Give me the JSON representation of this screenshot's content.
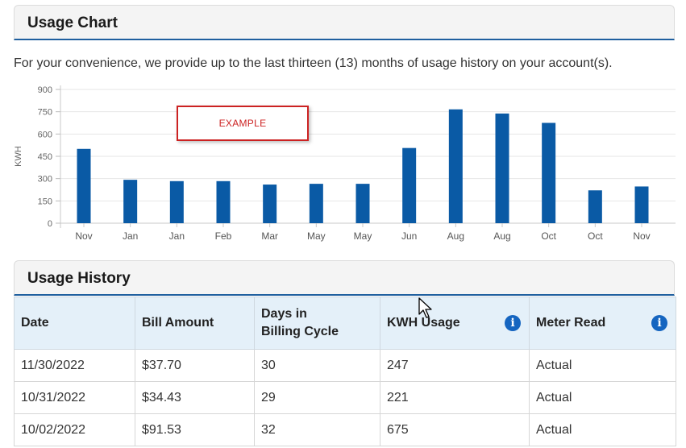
{
  "usage_chart": {
    "title": "Usage Chart",
    "intro": "For your convenience, we provide up to the last thirteen (13) months of usage history on your account(s).",
    "example_label": "EXAMPLE"
  },
  "chart_data": {
    "type": "bar",
    "categories": [
      "Nov",
      "Jan",
      "Jan",
      "Feb",
      "Mar",
      "May",
      "May",
      "Jun",
      "Aug",
      "Aug",
      "Oct",
      "Oct",
      "Nov"
    ],
    "values": [
      500,
      292,
      283,
      283,
      260,
      265,
      265,
      506,
      766,
      738,
      675,
      221,
      247
    ],
    "ylabel": "KWH",
    "ylim": [
      0,
      900
    ],
    "yticks": [
      0,
      150,
      300,
      450,
      600,
      750,
      900
    ],
    "grid": true,
    "bar_color": "#0a5aa5"
  },
  "usage_history": {
    "title": "Usage History",
    "columns": [
      "Date",
      "Bill Amount",
      "Days in\nBilling Cycle",
      "KWH Usage",
      "Meter Read"
    ],
    "rows": [
      [
        "11/30/2022",
        "$37.70",
        "30",
        "247",
        "Actual"
      ],
      [
        "10/31/2022",
        "$34.43",
        "29",
        "221",
        "Actual"
      ],
      [
        "10/02/2022",
        "$91.53",
        "32",
        "675",
        "Actual"
      ]
    ],
    "info_icon": "info-icon",
    "accent_color": "#1565c0"
  }
}
